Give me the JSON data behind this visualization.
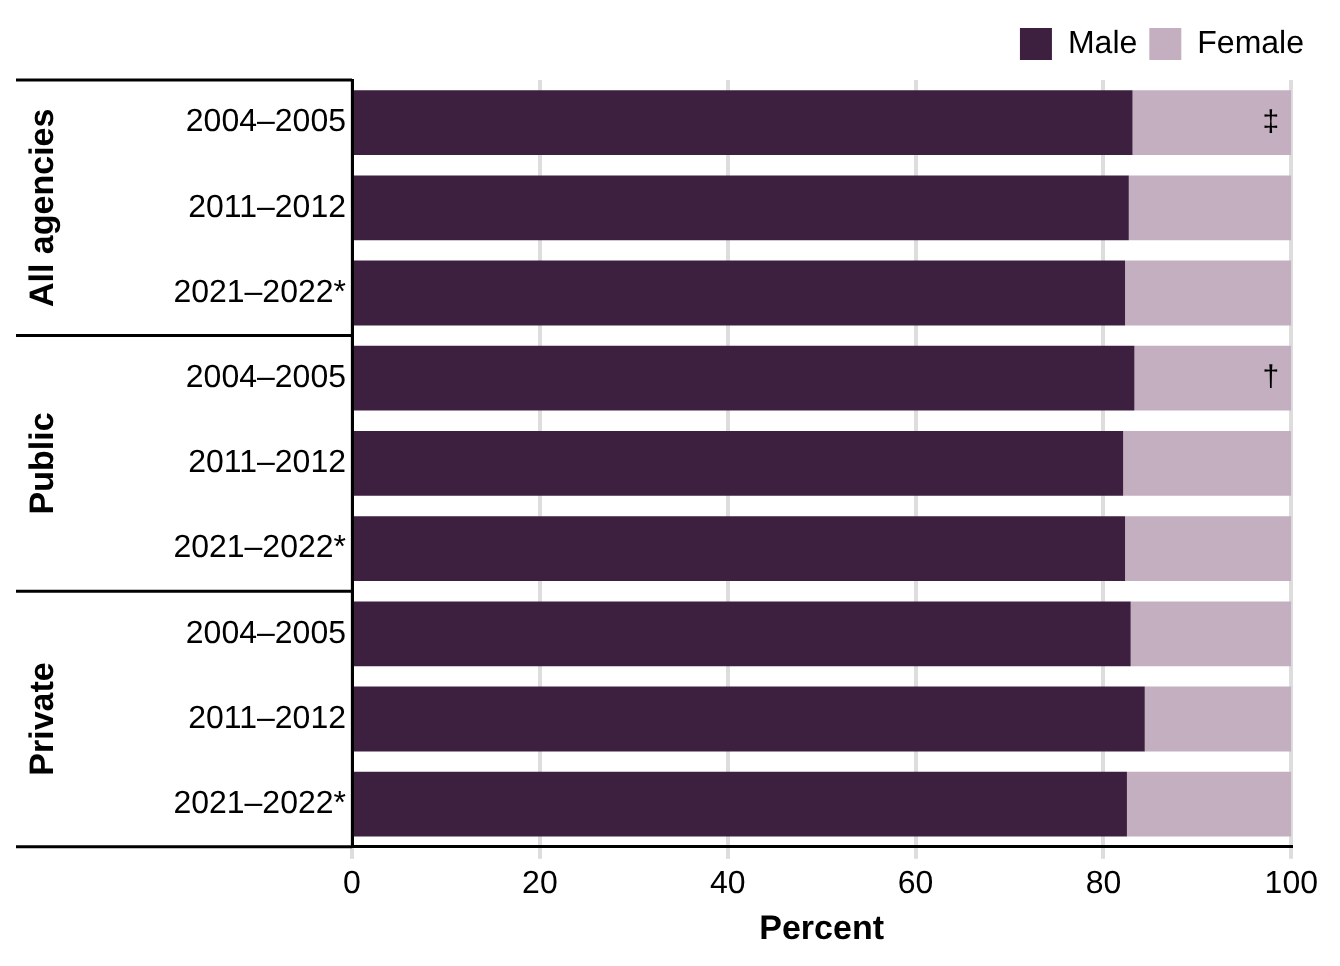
{
  "chart_data": {
    "type": "bar",
    "orientation": "horizontal",
    "stacked": true,
    "xlabel": "Percent",
    "categories": [
      "2004–2005",
      "2011–2012",
      "2021–2022*",
      "2004–2005",
      "2011–2012",
      "2021–2022*",
      "2004–2005",
      "2011–2012",
      "2021–2022*"
    ],
    "series": [
      {
        "name": "Male",
        "color": "#3d2040",
        "values": [
          83.1,
          82.7,
          82.3,
          83.3,
          82.1,
          82.3,
          82.9,
          84.4,
          82.5
        ]
      },
      {
        "name": "Female",
        "color": "#c4afc1",
        "values": [
          16.9,
          17.3,
          17.7,
          16.7,
          17.9,
          17.7,
          17.1,
          15.6,
          17.5
        ],
        "value_labels": [
          "‡",
          null,
          null,
          "†",
          null,
          null,
          null,
          null,
          null
        ]
      }
    ],
    "annotations": [
      "All agencies",
      "Public",
      "Private"
    ],
    "xlim": [
      0,
      100
    ],
    "xticks": [
      0,
      20,
      40,
      60,
      80,
      100
    ],
    "grid": "x",
    "legend": "top right"
  }
}
